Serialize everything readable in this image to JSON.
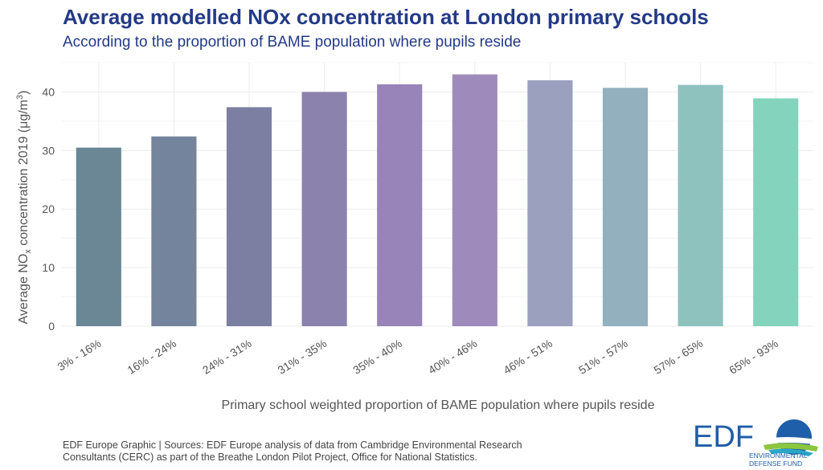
{
  "header": {
    "title": "Average modelled NOx concentration at London primary schools",
    "subtitle": "According to the proportion of BAME population where pupils reside"
  },
  "chart_data": {
    "type": "bar",
    "categories": [
      "3% - 16%",
      "16% - 24%",
      "24% - 31%",
      "31% - 35%",
      "35% - 40%",
      "40% - 46%",
      "46% - 51%",
      "51% - 57%",
      "57% - 65%",
      "65% - 93%"
    ],
    "values": [
      30.5,
      32.4,
      37.4,
      40.0,
      41.3,
      43.0,
      42.0,
      40.7,
      41.2,
      38.9
    ],
    "colors": [
      "#6b8796",
      "#73849c",
      "#7d7fa2",
      "#8c82ae",
      "#9884b8",
      "#9f8bbb",
      "#9ba0bf",
      "#93b0bf",
      "#8ec2bf",
      "#84d4bd"
    ],
    "xlabel": "Primary school weighted proportion of BAME population where pupils reside",
    "ylabel_prefix": "Average NO",
    "ylabel_sub": "x",
    "ylabel_suffix": " concentration 2019 (μg/m",
    "ylabel_sup": "3",
    "ylabel_end": ")",
    "yticks": [
      0,
      10,
      20,
      30,
      40
    ],
    "ylim": [
      0,
      45
    ],
    "grid": true
  },
  "footer": {
    "caption_line1": "EDF Europe Graphic | Sources: EDF Europe analysis of data from Cambridge Environmental Research",
    "caption_line2": "Consultants (CERC) as part of the Breathe London Pilot Project, Office for National Statistics.",
    "logo_text": "EDF",
    "logo_sub1": "ENVIRONMENTAL",
    "logo_sub2": "DEFENSE FUND"
  }
}
